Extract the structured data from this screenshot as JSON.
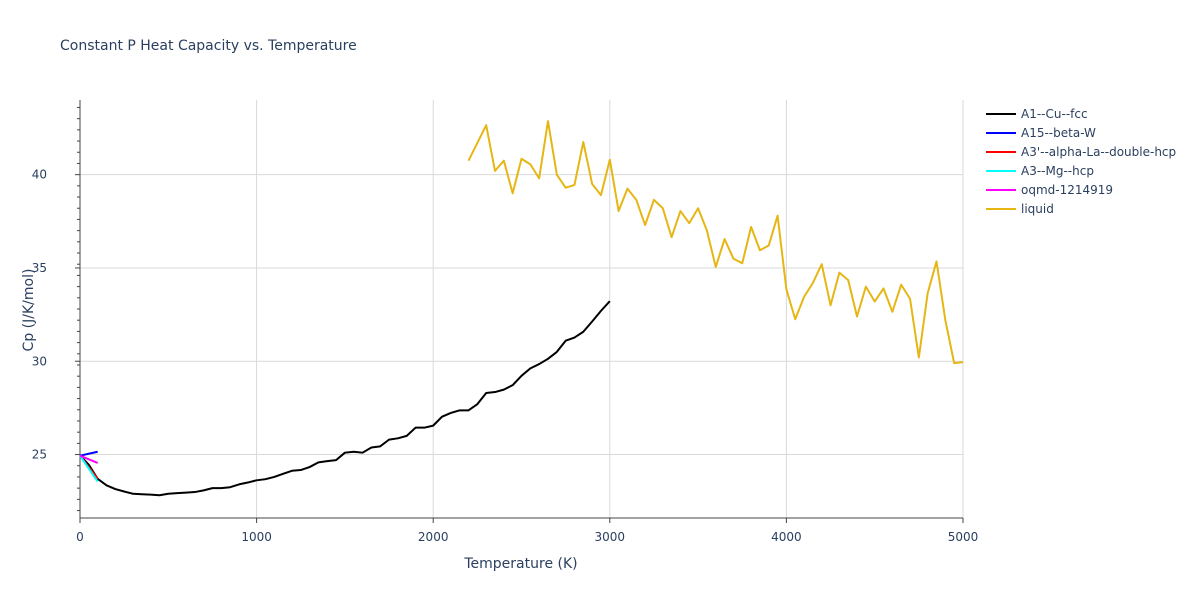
{
  "chart_data": {
    "type": "line",
    "title": "Constant P Heat Capacity vs. Temperature",
    "xlabel": "Temperature (K)",
    "ylabel": "Cp (J/K/mol)",
    "xlim": [
      0,
      5000
    ],
    "ylim": [
      21.6,
      44.0
    ],
    "x_ticks": [
      0,
      1000,
      2000,
      3000,
      4000,
      5000
    ],
    "x_tick_labels": [
      "0",
      "1000",
      "2000",
      "3000",
      "4000",
      "5000"
    ],
    "y_ticks": [
      25,
      30,
      35,
      40
    ],
    "y_tick_labels": [
      "25",
      "30",
      "35",
      "40"
    ],
    "legend_position": "right",
    "series": [
      {
        "name": "A1--Cu--fcc",
        "color": "#000000",
        "x": [
          0,
          50,
          100,
          150,
          200,
          250,
          300,
          350,
          400,
          450,
          500,
          550,
          600,
          650,
          700,
          750,
          800,
          850,
          900,
          950,
          1000,
          1050,
          1100,
          1150,
          1200,
          1250,
          1300,
          1350,
          1400,
          1450,
          1500,
          1550,
          1600,
          1650,
          1700,
          1750,
          1800,
          1850,
          1900,
          1950,
          2000,
          2050,
          2100,
          2150,
          2200,
          2250,
          2300,
          2350,
          2400,
          2450,
          2500,
          2550,
          2600,
          2650,
          2700,
          2750,
          2800,
          2850,
          2900,
          2950,
          3000
        ],
        "y": [
          24.95,
          24.45,
          23.7,
          23.35,
          23.15,
          23.02,
          22.9,
          22.87,
          22.85,
          22.82,
          22.9,
          22.93,
          22.96,
          22.99,
          23.08,
          23.2,
          23.2,
          23.25,
          23.4,
          23.5,
          23.62,
          23.68,
          23.8,
          23.97,
          24.13,
          24.17,
          24.33,
          24.58,
          24.65,
          24.7,
          25.1,
          25.15,
          25.1,
          25.38,
          25.44,
          25.8,
          25.87,
          26.0,
          26.44,
          26.44,
          26.55,
          27.03,
          27.23,
          27.37,
          27.37,
          27.7,
          28.3,
          28.35,
          28.48,
          28.72,
          29.22,
          29.62,
          29.85,
          30.13,
          30.5,
          31.1,
          31.27,
          31.58,
          32.13,
          32.7,
          33.22
        ]
      },
      {
        "name": "A15--beta-W",
        "color": "#0000ff",
        "x": [
          0,
          100
        ],
        "y": [
          24.94,
          25.15
        ]
      },
      {
        "name": "A3'--alpha-La--double-hcp",
        "color": "#ff0000",
        "x": [
          0,
          100
        ],
        "y": [
          24.94,
          23.7
        ]
      },
      {
        "name": "A3--Mg--hcp",
        "color": "#00ffff",
        "x": [
          0,
          100
        ],
        "y": [
          24.94,
          23.55
        ]
      },
      {
        "name": "oqmd-1214919",
        "color": "#ff00ff",
        "x": [
          0,
          100
        ],
        "y": [
          24.94,
          24.55
        ]
      },
      {
        "name": "liquid",
        "color": "#e6b615",
        "x": [
          2200,
          2250,
          2300,
          2350,
          2400,
          2450,
          2500,
          2550,
          2600,
          2650,
          2700,
          2750,
          2800,
          2850,
          2900,
          2950,
          3000,
          3050,
          3100,
          3150,
          3200,
          3250,
          3300,
          3350,
          3400,
          3450,
          3500,
          3550,
          3600,
          3650,
          3700,
          3750,
          3800,
          3850,
          3900,
          3950,
          4000,
          4050,
          4100,
          4150,
          4200,
          4250,
          4300,
          4350,
          4400,
          4450,
          4500,
          4550,
          4600,
          4650,
          4700,
          4750,
          4800,
          4850,
          4900,
          4950,
          5000
        ],
        "y": [
          40.75,
          41.7,
          42.65,
          40.2,
          40.75,
          39.0,
          40.85,
          40.55,
          39.8,
          42.87,
          40.0,
          39.3,
          39.45,
          41.75,
          39.5,
          38.9,
          40.8,
          38.05,
          39.25,
          38.65,
          37.3,
          38.65,
          38.2,
          36.65,
          38.05,
          37.4,
          38.2,
          37.0,
          35.05,
          36.55,
          35.5,
          35.25,
          37.2,
          35.95,
          36.2,
          37.8,
          33.85,
          32.25,
          33.45,
          34.2,
          35.2,
          33.0,
          34.75,
          34.35,
          32.4,
          34.0,
          33.2,
          33.9,
          32.65,
          34.1,
          33.35,
          30.2,
          33.65,
          35.35,
          32.2,
          29.9,
          29.95
        ]
      }
    ]
  }
}
